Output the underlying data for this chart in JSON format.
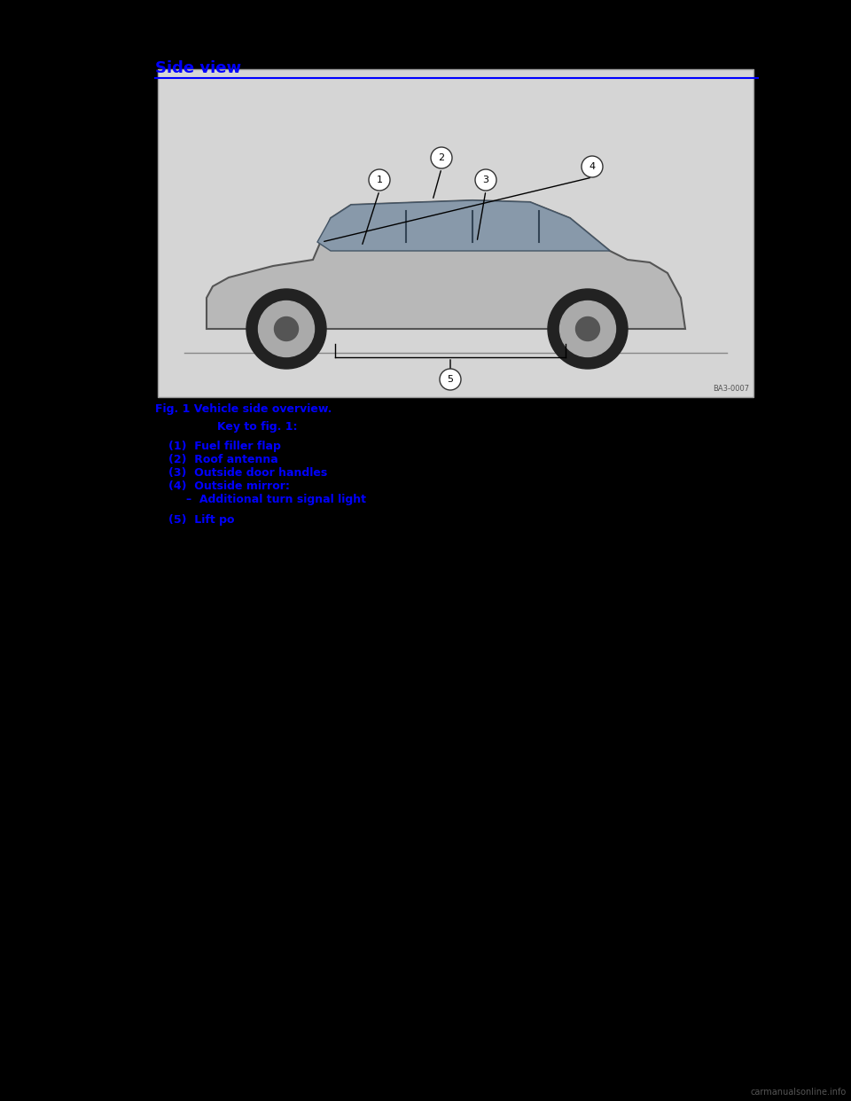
{
  "background_color": "#000000",
  "page_bg": "#000000",
  "header_text": "Side view",
  "header_color": "#0000FF",
  "header_line_color": "#0000FF",
  "header_fontsize": 13,
  "fig_caption": "Fig. 1 Vehicle side overview.",
  "fig_caption_color": "#0000FF",
  "fig_caption_fontsize": 9,
  "key_header": "Key to fig. 1:",
  "key_header_color": "#0000FF",
  "key_header_fontsize": 9,
  "key_items": [
    "(1) Fuel filler flap",
    "(2) Roof antenna",
    "(3) Outside door handles",
    "(4) Outside mirror:",
    "– Additional turn signal light",
    "(5) Lift po"
  ],
  "key_items_color": "#0000FF",
  "key_items_fontsize": 9,
  "watermark_text": "carmanualsonline.info",
  "watermark_color": "#555555",
  "car_image_bg": "#d4d4d4",
  "callout_numbers": [
    "1",
    "2",
    "3",
    "4",
    "5"
  ],
  "image_ref": "BA3-0007"
}
